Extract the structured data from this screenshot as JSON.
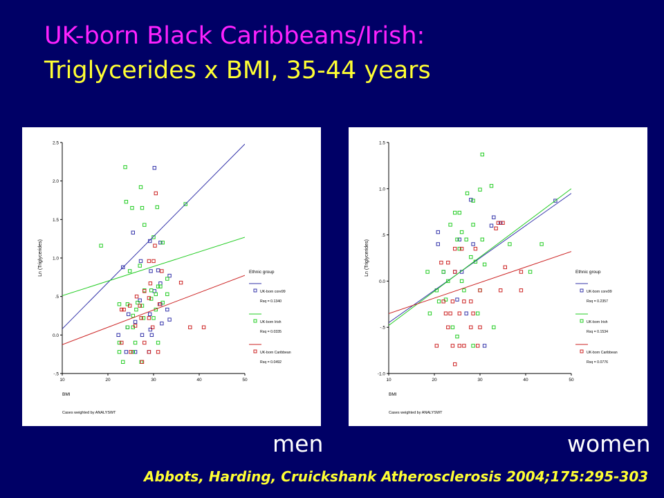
{
  "title": {
    "line1": "UK-born Black Caribbeans/Irish:",
    "line2": "Triglycerides x BMI, 35-44 years"
  },
  "captions": {
    "men": "men",
    "women": "women"
  },
  "citation": "Abbots, Harding, Cruickshank Atherosclerosis 2004;175:295-303",
  "colors": {
    "background": "#000066",
    "blue": "#3333aa",
    "green": "#22cc22",
    "red": "#cc2222"
  },
  "chart_data": [
    {
      "panel": "men",
      "type": "scatter",
      "xlabel": "BMI",
      "ylabel": "Ln (Triglycerides)",
      "xlim": [
        10,
        50
      ],
      "ylim": [
        -0.5,
        2.5
      ],
      "xticks": [
        10,
        20,
        30,
        40,
        50
      ],
      "xtick_labels": [
        "10",
        "20",
        "30",
        "40",
        "50"
      ],
      "yticks": [
        -0.5,
        0,
        0.5,
        1.0,
        1.5,
        2.0,
        2.5
      ],
      "ytick_labels": [
        "-.5",
        "0.0",
        ".5",
        "1.0",
        "1.5",
        "2.0",
        "2.5"
      ],
      "footnote": "Cases weighted by ANALYSWT",
      "legend_title": "Ethnic group",
      "legend_position": "right",
      "series": [
        {
          "name": "UK-born core99",
          "rsq": "Rsq = 0.1340",
          "color": "#3333aa",
          "fit": [
            -0.52,
            0.06
          ],
          "points": [
            [
              30.2,
              2.17
            ],
            [
              25.5,
              1.33
            ],
            [
              29.2,
              1.22
            ],
            [
              31.5,
              1.2
            ],
            [
              23.3,
              0.88
            ],
            [
              27.2,
              0.96
            ],
            [
              29.4,
              0.83
            ],
            [
              31,
              0.84
            ],
            [
              33.5,
              0.77
            ],
            [
              31.5,
              0.67
            ],
            [
              30.2,
              0.57
            ],
            [
              27,
              0.45
            ],
            [
              31.5,
              0.4
            ],
            [
              33,
              0.33
            ],
            [
              24.5,
              0.27
            ],
            [
              29.2,
              0.27
            ],
            [
              26,
              0.17
            ],
            [
              31.8,
              0.15
            ],
            [
              29.3,
              0.07
            ],
            [
              24.3,
              0.1
            ],
            [
              27.5,
              0
            ],
            [
              29.6,
              0
            ],
            [
              22.3,
              0
            ],
            [
              33.5,
              0.2
            ],
            [
              24,
              -0.22
            ],
            [
              26,
              -0.22
            ],
            [
              29,
              -0.22
            ]
          ]
        },
        {
          "name": "UK-born Irish",
          "rsq": "Rsq = 0.0335",
          "color": "#22cc22",
          "fit": [
            0.32,
            0.019
          ],
          "points": [
            [
              23.8,
              2.18
            ],
            [
              27.2,
              1.92
            ],
            [
              24,
              1.73
            ],
            [
              25.3,
              1.65
            ],
            [
              27.5,
              1.65
            ],
            [
              30.8,
              1.66
            ],
            [
              37,
              1.7
            ],
            [
              28,
              1.43
            ],
            [
              30,
              1.27
            ],
            [
              32,
              1.2
            ],
            [
              18.5,
              1.16
            ],
            [
              24.8,
              0.83
            ],
            [
              27,
              0.9
            ],
            [
              31,
              0.63
            ],
            [
              33,
              0.73
            ],
            [
              28,
              0.58
            ],
            [
              29.5,
              0.58
            ],
            [
              31.5,
              0.63
            ],
            [
              30.5,
              0.53
            ],
            [
              33,
              0.53
            ],
            [
              29.5,
              0.47
            ],
            [
              26.5,
              0.42
            ],
            [
              32,
              0.42
            ],
            [
              22.5,
              0.4
            ],
            [
              24.3,
              0.4
            ],
            [
              27.5,
              0.38
            ],
            [
              26.2,
              0.33
            ],
            [
              30.5,
              0.33
            ],
            [
              25.5,
              0.25
            ],
            [
              27.8,
              0.22
            ],
            [
              30,
              0.22
            ],
            [
              24.3,
              0.1
            ],
            [
              25.5,
              0.1
            ],
            [
              22.5,
              -0.1
            ],
            [
              26,
              -0.1
            ],
            [
              31,
              -0.1
            ],
            [
              22.5,
              -0.22
            ],
            [
              25.5,
              -0.22
            ],
            [
              27.3,
              -0.35
            ],
            [
              23.3,
              -0.35
            ]
          ]
        },
        {
          "name": "UK-born Caribbean",
          "rsq": "Rsq = 0.0492",
          "color": "#cc2222",
          "fit": [
            -0.35,
            0.0225
          ],
          "points": [
            [
              30.5,
              1.84
            ],
            [
              30.3,
              1.16
            ],
            [
              29,
              0.96
            ],
            [
              30,
              0.96
            ],
            [
              31.8,
              0.83
            ],
            [
              29.3,
              0.67
            ],
            [
              36,
              0.68
            ],
            [
              28,
              0.57
            ],
            [
              26.3,
              0.5
            ],
            [
              29,
              0.48
            ],
            [
              24.8,
              0.38
            ],
            [
              27,
              0.38
            ],
            [
              31.3,
              0.4
            ],
            [
              23,
              0.33
            ],
            [
              23.5,
              0.33
            ],
            [
              27.3,
              0.22
            ],
            [
              29,
              0.22
            ],
            [
              26,
              0.12
            ],
            [
              29.8,
              0.1
            ],
            [
              38,
              0.1
            ],
            [
              41,
              0.1
            ],
            [
              23,
              -0.1
            ],
            [
              28,
              -0.1
            ],
            [
              25,
              -0.22
            ],
            [
              29,
              -0.22
            ],
            [
              31,
              -0.22
            ],
            [
              27.5,
              -0.35
            ]
          ]
        }
      ]
    },
    {
      "panel": "women",
      "type": "scatter",
      "xlabel": "BMI",
      "ylabel": "Ln (Triglycerides)",
      "xlim": [
        10,
        50
      ],
      "ylim": [
        -1.0,
        1.5
      ],
      "xticks": [
        10,
        20,
        30,
        40,
        50
      ],
      "xtick_labels": [
        "10",
        "20",
        "30",
        "40",
        "50"
      ],
      "yticks": [
        -1.0,
        -0.5,
        0,
        0.5,
        1.0,
        1.5
      ],
      "ytick_labels": [
        "-1.0",
        "-.5",
        "0.0",
        ".5",
        "1.0",
        "1.5"
      ],
      "footnote": "Cases weighted by ANALYSWT",
      "legend_title": "Ethnic group",
      "legend_position": "right",
      "series": [
        {
          "name": "UK-born core99",
          "rsq": "Rsq = 0.2357",
          "color": "#3333aa",
          "fit": [
            -0.8,
            0.035
          ],
          "points": [
            [
              46.5,
              0.87
            ],
            [
              33,
              0.69
            ],
            [
              34.5,
              0.63
            ],
            [
              28,
              0.88
            ],
            [
              20.8,
              0.53
            ],
            [
              25.5,
              0.45
            ],
            [
              20.8,
              0.4
            ],
            [
              24.5,
              0.1
            ],
            [
              26,
              0.1
            ],
            [
              28.5,
              0.4
            ],
            [
              32.5,
              0.6
            ],
            [
              31,
              -0.7
            ],
            [
              22,
              0.1
            ],
            [
              25,
              -0.2
            ],
            [
              27,
              -0.35
            ]
          ]
        },
        {
          "name": "UK-born Irish",
          "rsq": "Rsq = 0.1534",
          "color": "#22cc22",
          "fit": [
            -0.85,
            0.037
          ],
          "points": [
            [
              30.5,
              1.37
            ],
            [
              32.5,
              1.03
            ],
            [
              30,
              0.99
            ],
            [
              27.2,
              0.95
            ],
            [
              28.5,
              0.87
            ],
            [
              24.5,
              0.74
            ],
            [
              25.5,
              0.74
            ],
            [
              23.5,
              0.61
            ],
            [
              26,
              0.53
            ],
            [
              28.5,
              0.61
            ],
            [
              25,
              0.45
            ],
            [
              27,
              0.45
            ],
            [
              30.5,
              0.45
            ],
            [
              36.5,
              0.4
            ],
            [
              43.5,
              0.4
            ],
            [
              25.5,
              0.35
            ],
            [
              28,
              0.26
            ],
            [
              29,
              0.21
            ],
            [
              31,
              0.18
            ],
            [
              22,
              0.1
            ],
            [
              18.5,
              0.1
            ],
            [
              26,
              0
            ],
            [
              23,
              0
            ],
            [
              20.5,
              -0.1
            ],
            [
              26.5,
              -0.1
            ],
            [
              30,
              -0.1
            ],
            [
              21,
              -0.22
            ],
            [
              29.5,
              -0.35
            ],
            [
              19,
              -0.35
            ],
            [
              24,
              -0.5
            ],
            [
              33,
              -0.5
            ],
            [
              25,
              -0.6
            ],
            [
              28.5,
              -0.7
            ],
            [
              41,
              0.1
            ],
            [
              22.5,
              -0.2
            ]
          ]
        },
        {
          "name": "UK-born Caribbean",
          "rsq": "Rsq = 0.0776",
          "color": "#cc2222",
          "fit": [
            -0.52,
            0.0168
          ],
          "points": [
            [
              34,
              0.63
            ],
            [
              35,
              0.63
            ],
            [
              33.5,
              0.57
            ],
            [
              24.5,
              0.35
            ],
            [
              26,
              0.35
            ],
            [
              21.5,
              0.2
            ],
            [
              23,
              0.2
            ],
            [
              29,
              0.35
            ],
            [
              39,
              0.1
            ],
            [
              24.5,
              0.1
            ],
            [
              35.5,
              0.15
            ],
            [
              30,
              -0.1
            ],
            [
              34.5,
              -0.1
            ],
            [
              39,
              -0.1
            ],
            [
              22,
              -0.22
            ],
            [
              24,
              -0.22
            ],
            [
              26.5,
              -0.22
            ],
            [
              28,
              -0.22
            ],
            [
              22.5,
              -0.35
            ],
            [
              23.5,
              -0.35
            ],
            [
              25.5,
              -0.35
            ],
            [
              28.5,
              -0.35
            ],
            [
              20.5,
              -0.7
            ],
            [
              24,
              -0.7
            ],
            [
              25.5,
              -0.7
            ],
            [
              26.5,
              -0.7
            ],
            [
              29.5,
              -0.7
            ],
            [
              23,
              -0.5
            ],
            [
              28,
              -0.5
            ],
            [
              24.5,
              -0.9
            ],
            [
              30,
              -0.5
            ]
          ]
        }
      ]
    }
  ]
}
